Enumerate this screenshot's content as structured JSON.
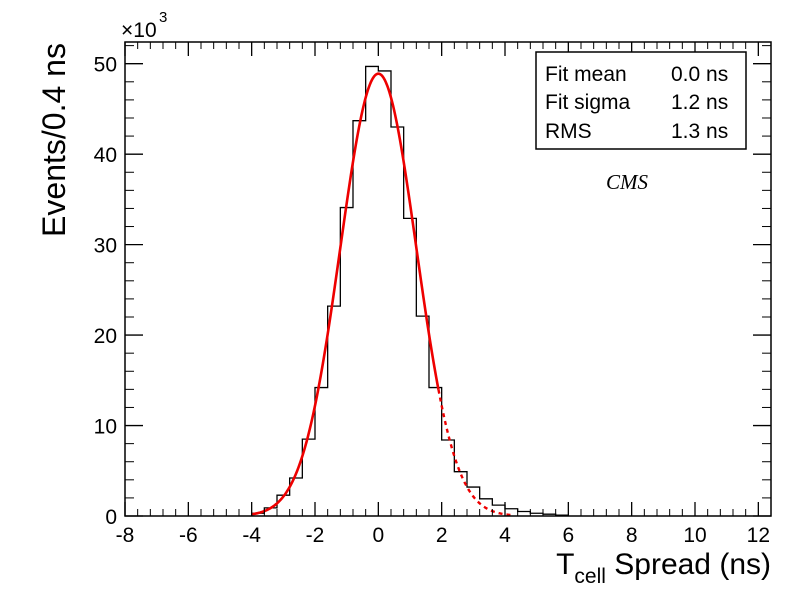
{
  "chart_data": {
    "type": "histogram",
    "xlabel_main": "T",
    "xlabel_sub": "cell",
    "xlabel_rest": " Spread (ns)",
    "ylabel": "Events/0.4 ns",
    "y_multiplier_base": "×10",
    "y_multiplier_exp": "3",
    "xlim": [
      -8,
      12.4
    ],
    "ylim": [
      0,
      52.4
    ],
    "x_ticks": [
      -8,
      -6,
      -4,
      -2,
      0,
      2,
      4,
      6,
      8,
      10,
      12
    ],
    "x_tick_labels": [
      "-8",
      "-6",
      "-4",
      "-2",
      "0",
      "2",
      "4",
      "6",
      "8",
      "10",
      "12"
    ],
    "y_ticks": [
      0,
      10,
      20,
      30,
      40,
      50
    ],
    "y_tick_labels": [
      "0",
      "10",
      "20",
      "30",
      "40",
      "50"
    ],
    "bin_width": 0.4,
    "bin_edges": [
      -4.0,
      -3.6,
      -3.2,
      -2.8,
      -2.4,
      -2.0,
      -1.6,
      -1.2,
      -0.8,
      -0.4,
      0.0,
      0.4,
      0.8,
      1.2,
      1.6,
      2.0,
      2.4,
      2.8,
      3.2,
      3.6,
      4.0,
      4.4,
      4.8,
      5.2,
      5.6,
      6.0
    ],
    "bin_counts": [
      0.3,
      0.9,
      2.3,
      4.2,
      8.5,
      14.2,
      23.2,
      34.1,
      43.7,
      49.7,
      49.2,
      43.0,
      32.9,
      22.1,
      14.2,
      8.4,
      4.9,
      3.2,
      1.9,
      1.2,
      0.8,
      0.5,
      0.3,
      0.2,
      0.1
    ],
    "fit": {
      "function": "gaussian",
      "color": "#ee0000",
      "amplitude": 48.9,
      "mean": 0.0,
      "sigma": 1.2,
      "solid_range": [
        -4.0,
        1.9
      ],
      "dashed_range": [
        1.9,
        4.2
      ]
    },
    "stats_box": [
      {
        "label": "Fit mean",
        "value": "0.0 ns"
      },
      {
        "label": "Fit sigma",
        "value": "1.2 ns"
      },
      {
        "label": "RMS",
        "value": "1.3 ns"
      }
    ],
    "annotation": "CMS"
  }
}
